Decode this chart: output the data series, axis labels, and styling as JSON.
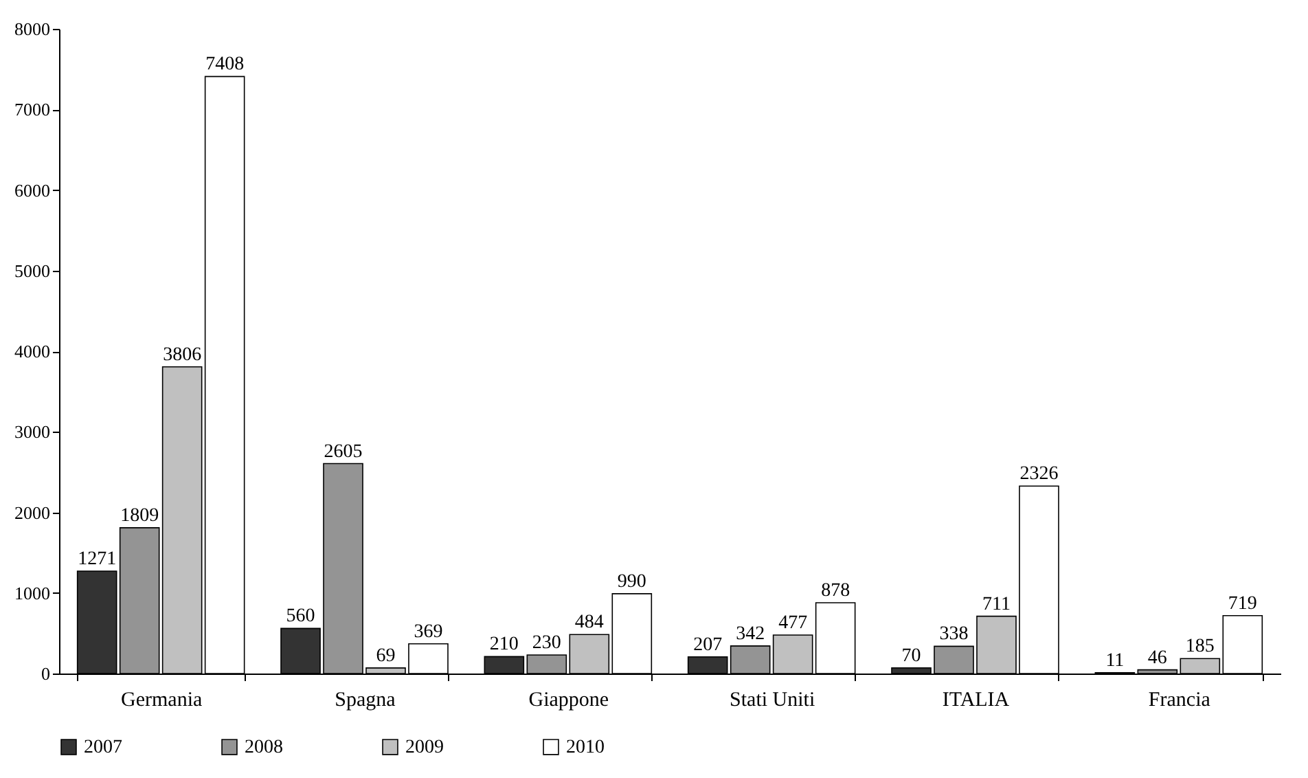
{
  "chart_data": {
    "type": "bar",
    "categories": [
      "Germania",
      "Spagna",
      "Giappone",
      "Stati Uniti",
      "ITALIA",
      "Francia"
    ],
    "series": [
      {
        "name": "2007",
        "color": "#333333",
        "values": [
          1271,
          560,
          210,
          207,
          70,
          11
        ]
      },
      {
        "name": "2008",
        "color": "#949494",
        "values": [
          1809,
          2605,
          230,
          342,
          338,
          46
        ]
      },
      {
        "name": "2009",
        "color": "#c0c0c0",
        "values": [
          3806,
          69,
          484,
          477,
          711,
          185
        ]
      },
      {
        "name": "2010",
        "color": "#ffffff",
        "values": [
          7408,
          369,
          990,
          878,
          2326,
          719
        ]
      }
    ],
    "ylim": [
      0,
      8000
    ],
    "yticks": [
      0,
      1000,
      2000,
      3000,
      4000,
      5000,
      6000,
      7000,
      8000
    ],
    "grid": false,
    "legend": "bottom",
    "data_labels": true
  }
}
